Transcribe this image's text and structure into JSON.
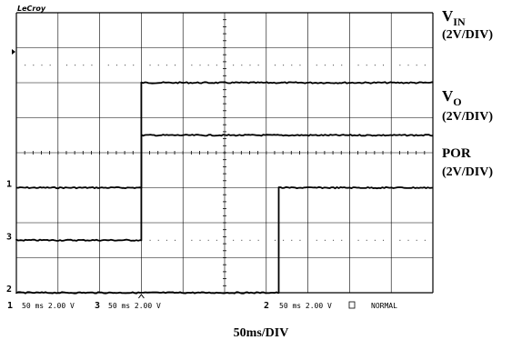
{
  "chart_data": {
    "type": "line",
    "brand": "LeCroy",
    "x_unit": "ms",
    "xlim": [
      0,
      500
    ],
    "ylim": [
      -8,
      8
    ],
    "grid": true,
    "x_scale_label": "50ms/DIV",
    "series": [
      {
        "name": "VIN",
        "name_main": "V",
        "name_sub": "IN",
        "scale": "(2V/DIV)",
        "channel": "1",
        "x": [
          0,
          150,
          150,
          500
        ],
        "y": [
          -2,
          -2,
          4,
          4
        ]
      },
      {
        "name": "VO",
        "name_main": "V",
        "name_sub": "O",
        "scale": "(2V/DIV)",
        "channel": "3",
        "x": [
          0,
          150,
          150,
          500
        ],
        "y": [
          -5,
          -5,
          1,
          1
        ]
      },
      {
        "name": "POR",
        "name_main": "POR",
        "name_sub": "",
        "scale": "(2V/DIV)",
        "channel": "2",
        "x": [
          0,
          315,
          315,
          500
        ],
        "y": [
          -8,
          -8,
          -2,
          -2
        ]
      }
    ]
  },
  "status_bar": {
    "ch1_num": "1",
    "ch1_text": "50 ms 2.00 V",
    "ch3_num": "3",
    "ch3_text": "50 ms 2.00 V",
    "ch2_num": "2",
    "ch2_text": "50 ms 2.00 V",
    "mode": "NORMAL"
  }
}
